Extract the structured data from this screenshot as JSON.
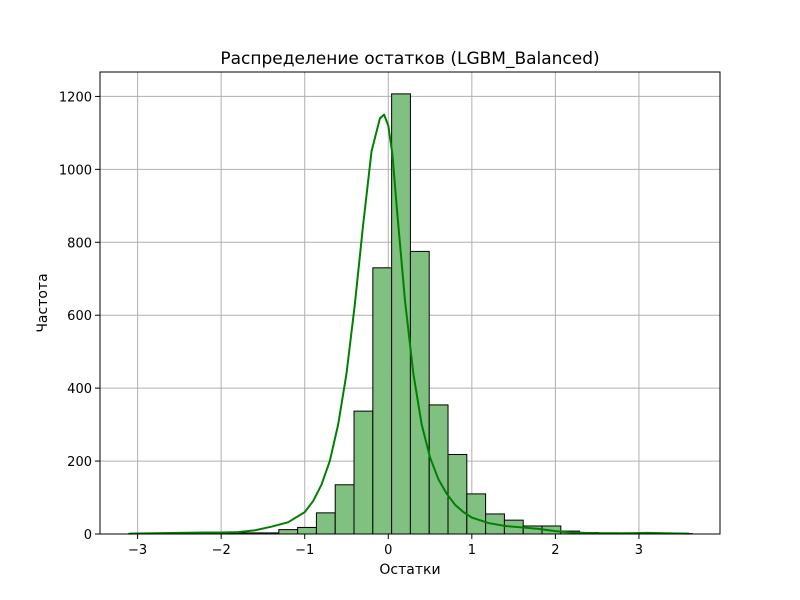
{
  "chart_data": {
    "type": "bar",
    "title": "Распределение остатков (LGBM_Balanced)",
    "xlabel": "Остатки",
    "ylabel": "Частота",
    "xlim": [
      -3.45,
      3.97
    ],
    "ylim": [
      0,
      1267
    ],
    "grid": true,
    "bar_color": "#80c080",
    "edge_color": "#000000",
    "kde_color": "#008000",
    "xticks": [
      -3,
      -2,
      -1,
      0,
      1,
      2,
      3
    ],
    "xtick_labels": [
      "−3",
      "−2",
      "−1",
      "0",
      "1",
      "2",
      "3"
    ],
    "yticks": [
      0,
      200,
      400,
      600,
      800,
      1000,
      1200
    ],
    "ytick_labels": [
      "0",
      "200",
      "400",
      "600",
      "800",
      "1000",
      "1200"
    ],
    "bins": {
      "start": -3.11,
      "width": 0.225,
      "counts": [
        1,
        0,
        0,
        1,
        2,
        2,
        3,
        3,
        12,
        18,
        58,
        135,
        337,
        730,
        1207,
        775,
        354,
        218,
        110,
        55,
        38,
        22,
        22,
        8,
        4,
        3,
        2,
        1,
        1,
        1
      ]
    },
    "kde": {
      "x": [
        -3.1,
        -2.8,
        -2.5,
        -2.2,
        -2.0,
        -1.8,
        -1.6,
        -1.4,
        -1.2,
        -1.0,
        -0.9,
        -0.8,
        -0.7,
        -0.6,
        -0.5,
        -0.4,
        -0.3,
        -0.2,
        -0.1,
        -0.05,
        0.0,
        0.05,
        0.1,
        0.2,
        0.3,
        0.4,
        0.5,
        0.6,
        0.7,
        0.8,
        0.9,
        1.0,
        1.2,
        1.4,
        1.6,
        1.8,
        2.0,
        2.2,
        2.5,
        2.8,
        3.1,
        3.3,
        3.6
      ],
      "y": [
        1,
        2,
        3,
        4,
        4,
        5,
        10,
        20,
        32,
        60,
        90,
        135,
        200,
        300,
        440,
        630,
        850,
        1050,
        1140,
        1150,
        1120,
        1040,
        900,
        640,
        440,
        300,
        210,
        150,
        110,
        80,
        60,
        45,
        30,
        22,
        18,
        14,
        8,
        4,
        2,
        2,
        3,
        2,
        1
      ]
    }
  }
}
